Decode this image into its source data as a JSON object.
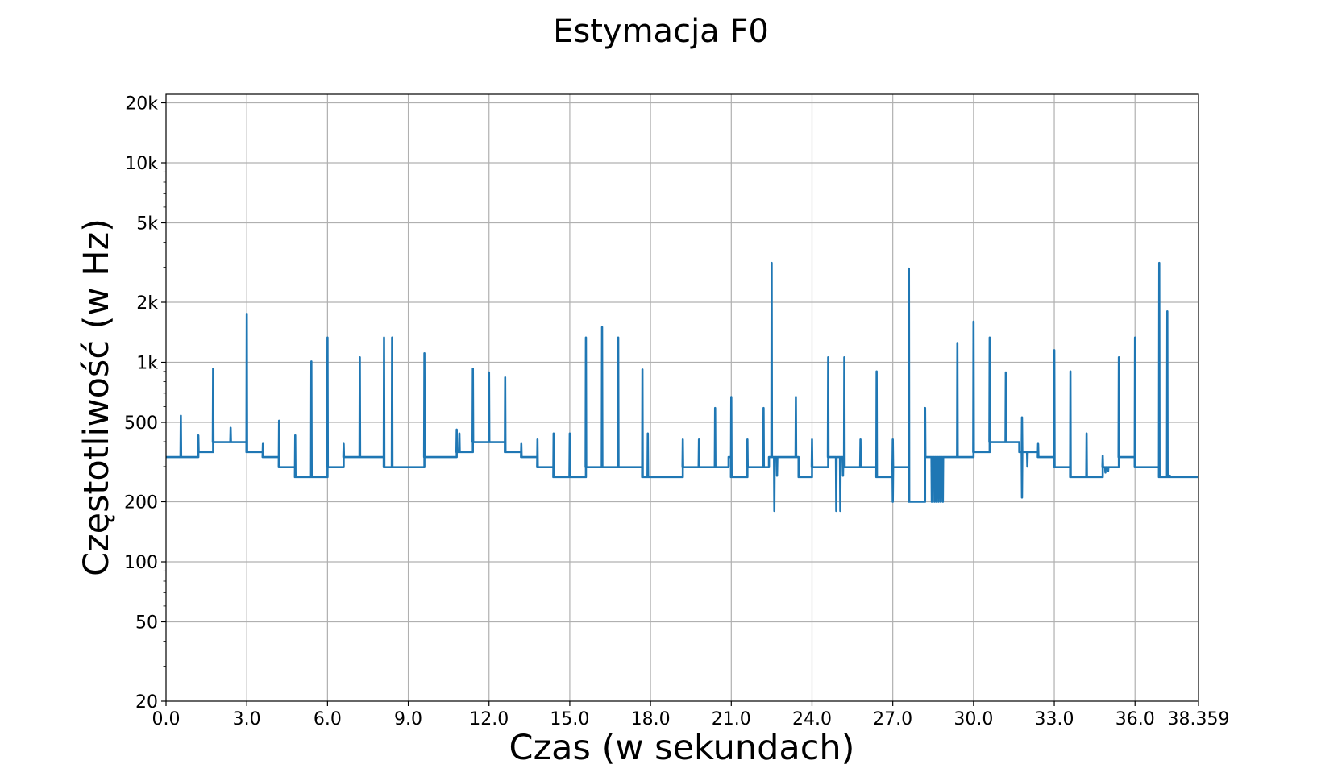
{
  "chart_data": {
    "type": "line",
    "title": "Estymacja F0",
    "xlabel": "Czas (w sekundach)",
    "ylabel": "Częstotliwość (w Hz)",
    "xlim": [
      0.0,
      38.359
    ],
    "ylim": [
      20,
      22000
    ],
    "yscale": "log",
    "grid": true,
    "line_color": "#1f77b4",
    "x_ticks": [
      0.0,
      3.0,
      6.0,
      9.0,
      12.0,
      15.0,
      18.0,
      21.0,
      24.0,
      27.0,
      30.0,
      33.0,
      36.0,
      38.359
    ],
    "x_tick_labels": [
      "0.0",
      "3.0",
      "6.0",
      "9.0",
      "12.0",
      "15.0",
      "18.0",
      "21.0",
      "24.0",
      "27.0",
      "30.0",
      "33.0",
      "36.0",
      "38.359"
    ],
    "y_ticks": [
      20,
      50,
      100,
      200,
      500,
      1000,
      2000,
      5000,
      10000,
      20000
    ],
    "y_tick_labels": [
      "20",
      "50",
      "100",
      "200",
      "500",
      "1k",
      "2k",
      "5k",
      "10k",
      "20k"
    ],
    "series": [
      {
        "segments": [
          [
            0.0,
            1.2,
            335
          ],
          [
            1.2,
            1.75,
            355
          ],
          [
            1.75,
            3.0,
            398
          ],
          [
            3.0,
            3.6,
            355
          ],
          [
            3.6,
            4.2,
            335
          ],
          [
            4.2,
            4.8,
            298
          ],
          [
            4.8,
            6.0,
            266
          ],
          [
            6.0,
            6.6,
            298
          ],
          [
            6.6,
            8.1,
            335
          ],
          [
            8.1,
            9.6,
            298
          ],
          [
            9.6,
            10.8,
            335
          ],
          [
            10.8,
            11.4,
            355
          ],
          [
            11.4,
            12.6,
            398
          ],
          [
            12.6,
            13.2,
            355
          ],
          [
            13.2,
            13.8,
            335
          ],
          [
            13.8,
            14.4,
            298
          ],
          [
            14.4,
            15.6,
            266
          ],
          [
            15.6,
            16.8,
            298
          ],
          [
            16.8,
            17.7,
            298
          ],
          [
            17.7,
            19.2,
            266
          ],
          [
            19.2,
            20.9,
            298
          ],
          [
            20.9,
            21.0,
            335
          ],
          [
            21.0,
            21.6,
            266
          ],
          [
            21.6,
            22.4,
            298
          ],
          [
            22.4,
            23.5,
            335
          ],
          [
            23.5,
            24.0,
            266
          ],
          [
            24.0,
            24.6,
            298
          ],
          [
            24.6,
            25.2,
            335
          ],
          [
            25.2,
            25.8,
            298
          ],
          [
            25.8,
            26.4,
            298
          ],
          [
            26.4,
            27.0,
            266
          ],
          [
            27.0,
            27.6,
            298
          ],
          [
            27.6,
            28.2,
            200
          ],
          [
            28.2,
            29.6,
            335
          ],
          [
            29.6,
            30.0,
            335
          ],
          [
            30.0,
            30.6,
            355
          ],
          [
            30.6,
            31.7,
            398
          ],
          [
            31.7,
            32.4,
            355
          ],
          [
            32.4,
            33.0,
            335
          ],
          [
            33.0,
            33.6,
            298
          ],
          [
            33.6,
            34.8,
            266
          ],
          [
            34.8,
            35.4,
            298
          ],
          [
            35.4,
            36.0,
            335
          ],
          [
            36.0,
            36.9,
            298
          ],
          [
            36.9,
            37.2,
            266
          ],
          [
            37.2,
            38.359,
            266
          ]
        ],
        "spikes": [
          [
            0.55,
            540
          ],
          [
            1.2,
            430
          ],
          [
            1.75,
            930
          ],
          [
            2.4,
            470
          ],
          [
            3.0,
            1750
          ],
          [
            3.6,
            390
          ],
          [
            4.2,
            510
          ],
          [
            4.8,
            430
          ],
          [
            5.4,
            1010
          ],
          [
            6.0,
            1330
          ],
          [
            6.6,
            390
          ],
          [
            7.2,
            1060
          ],
          [
            8.1,
            1330
          ],
          [
            8.4,
            1330
          ],
          [
            9.6,
            1110
          ],
          [
            10.8,
            460
          ],
          [
            10.9,
            440
          ],
          [
            11.4,
            930
          ],
          [
            12.0,
            890
          ],
          [
            12.6,
            840
          ],
          [
            13.2,
            390
          ],
          [
            13.8,
            410
          ],
          [
            14.4,
            440
          ],
          [
            15.0,
            440
          ],
          [
            15.6,
            1330
          ],
          [
            16.2,
            1500
          ],
          [
            16.8,
            1330
          ],
          [
            17.7,
            920
          ],
          [
            17.9,
            440
          ],
          [
            19.2,
            410
          ],
          [
            19.8,
            410
          ],
          [
            20.4,
            590
          ],
          [
            21.0,
            670
          ],
          [
            21.6,
            410
          ],
          [
            22.2,
            590
          ],
          [
            22.5,
            3150
          ],
          [
            23.4,
            670
          ],
          [
            24.0,
            410
          ],
          [
            24.6,
            1060
          ],
          [
            25.2,
            1060
          ],
          [
            25.8,
            410
          ],
          [
            26.4,
            900
          ],
          [
            27.0,
            410
          ],
          [
            27.6,
            2950
          ],
          [
            28.2,
            590
          ],
          [
            29.4,
            1250
          ],
          [
            30.0,
            1600
          ],
          [
            30.6,
            1330
          ],
          [
            31.2,
            890
          ],
          [
            31.8,
            530
          ],
          [
            32.4,
            390
          ],
          [
            33.0,
            1150
          ],
          [
            33.6,
            900
          ],
          [
            34.2,
            440
          ],
          [
            34.8,
            340
          ],
          [
            35.4,
            1060
          ],
          [
            36.0,
            1330
          ],
          [
            36.9,
            3150
          ],
          [
            37.2,
            1800
          ]
        ],
        "dips": [
          [
            22.6,
            180
          ],
          [
            22.7,
            270
          ],
          [
            24.9,
            180
          ],
          [
            25.05,
            180
          ],
          [
            25.15,
            270
          ],
          [
            27.0,
            200
          ],
          [
            28.45,
            200
          ],
          [
            28.55,
            200
          ],
          [
            28.62,
            200
          ],
          [
            28.7,
            200
          ],
          [
            28.78,
            200
          ],
          [
            28.86,
            200
          ],
          [
            31.8,
            210
          ],
          [
            32.0,
            300
          ],
          [
            34.9,
            280
          ],
          [
            35.0,
            285
          ],
          [
            37.3,
            270
          ]
        ]
      }
    ]
  }
}
